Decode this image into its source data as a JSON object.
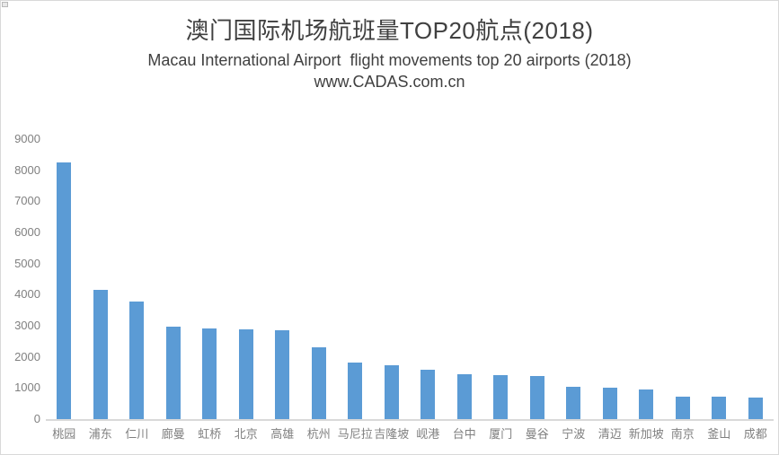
{
  "header": {
    "title_cn": "澳门国际机场航班量TOP20航点(2018)",
    "subtitle_en": "Macau International Airport  flight movements top 20 airports (2018)",
    "website": "www.CADAS.com.cn"
  },
  "chart_data": {
    "type": "bar",
    "title": "澳门国际机场航班量TOP20航点(2018)",
    "subtitle": "Macau International Airport  flight movements top 20 airports (2018)",
    "annotation": "www.CADAS.com.cn",
    "categories": [
      "桃园",
      "浦东",
      "仁川",
      "廊曼",
      "虹桥",
      "北京",
      "高雄",
      "杭州",
      "马尼拉",
      "吉隆坡",
      "岘港",
      "台中",
      "厦门",
      "曼谷",
      "宁波",
      "清迈",
      "新加坡",
      "南京",
      "釜山",
      "成都"
    ],
    "values": [
      8250,
      4150,
      3770,
      2970,
      2910,
      2890,
      2860,
      2320,
      1820,
      1720,
      1590,
      1430,
      1400,
      1390,
      1030,
      1000,
      940,
      720,
      710,
      700
    ],
    "xlabel": "",
    "ylabel": "",
    "ylim": [
      0,
      9000
    ],
    "ytick_step": 1000,
    "yticks": [
      0,
      1000,
      2000,
      3000,
      4000,
      5000,
      6000,
      7000,
      8000,
      9000
    ],
    "grid": false,
    "legend": "none",
    "bar_color": "#5B9BD5",
    "axis_label_color": "#808080",
    "axis_line_color": "#D9D9D9",
    "title_color": "#404040",
    "background_color": "#FFFFFF"
  }
}
